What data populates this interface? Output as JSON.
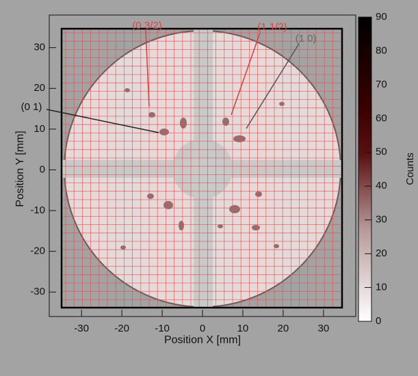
{
  "chart_data": {
    "type": "heatmap",
    "xlabel": "Position X [mm]",
    "ylabel": "Position Y [mm]",
    "xlim": [
      -38,
      38
    ],
    "ylim": [
      -36,
      38
    ],
    "xticks": [
      -30,
      -20,
      -10,
      0,
      10,
      20,
      30
    ],
    "yticks": [
      -30,
      -20,
      -10,
      0,
      10,
      20,
      30
    ],
    "colorbar": {
      "label": "Counts",
      "lim": [
        0,
        90
      ],
      "ticks": [
        0,
        10,
        20,
        30,
        40,
        50,
        60,
        70,
        80,
        90
      ]
    },
    "annotations": [
      {
        "text": "(0 3/2)"
      },
      {
        "text": "(1 1/2)"
      },
      {
        "text": "(1 0)"
      },
      {
        "text": "(0 1)"
      }
    ]
  }
}
